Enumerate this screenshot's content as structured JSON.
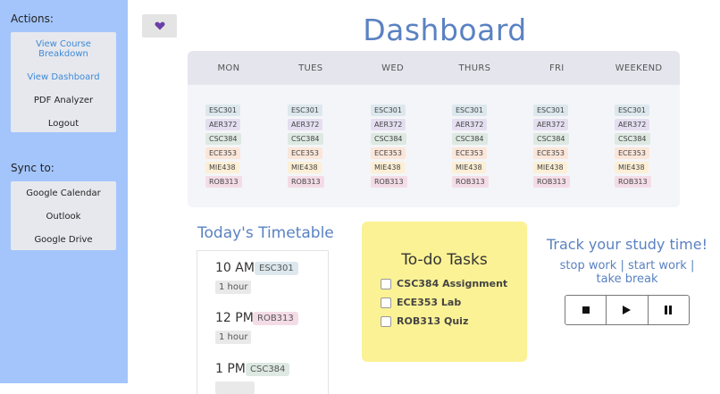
{
  "sidebar": {
    "actions_heading": "Actions:",
    "actions": [
      "View Course Breakdown",
      "View Dashboard",
      "PDF Analyzer",
      "Logout"
    ],
    "sync_heading": "Sync to:",
    "sync": [
      "Google Calendar",
      "Outlook",
      "Google Drive"
    ]
  },
  "favorite_icon": "heart-icon",
  "title": "Dashboard",
  "schedule": {
    "days": [
      "MON",
      "TUES",
      "WED",
      "THURS",
      "FRI",
      "WEEKEND"
    ],
    "courses": [
      "ESC301",
      "AER372",
      "CSC384",
      "ECE353",
      "MIE438",
      "ROB313"
    ]
  },
  "course_colors": {
    "ESC301": "#dce8ee",
    "AER372": "#e4def0",
    "CSC384": "#dde9e2",
    "ECE353": "#fbe6d9",
    "MIE438": "#fcefd5",
    "ROB313": "#f4dce7"
  },
  "timetable": {
    "title": "Today's Timetable",
    "entries": [
      {
        "time": "10 AM",
        "course": "ESC301",
        "duration": "1 hour"
      },
      {
        "time": "12 PM",
        "course": "ROB313",
        "duration": "1 hour"
      },
      {
        "time": "1 PM",
        "course": "CSC384",
        "duration": ""
      }
    ]
  },
  "todo": {
    "title": "To-do Tasks",
    "items": [
      "CSC384 Assignment",
      "ECE353 Lab",
      "ROB313 Quiz"
    ]
  },
  "tracker": {
    "title": "Track your study time!",
    "subtitle": "stop work | start work | take break",
    "buttons": [
      "stop-icon",
      "play-icon",
      "pause-icon"
    ]
  }
}
